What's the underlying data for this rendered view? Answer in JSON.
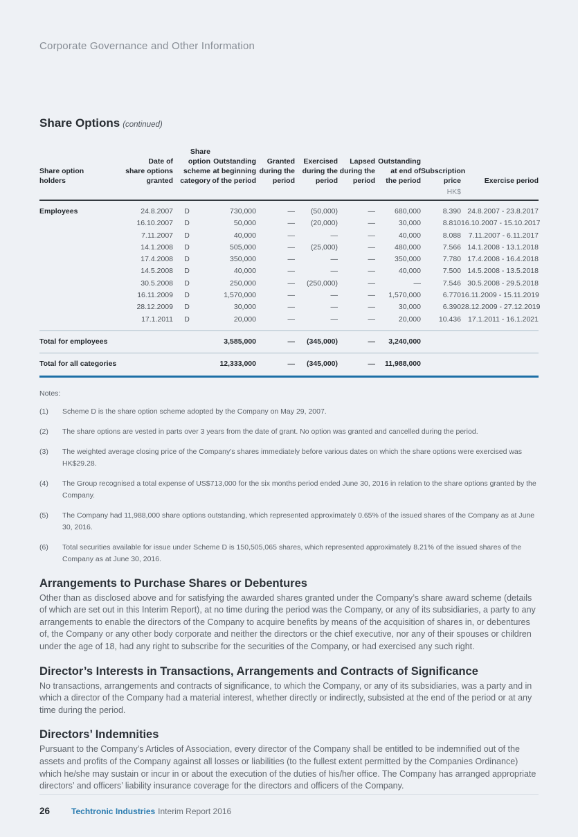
{
  "page": {
    "header": "Corporate Governance and Other Information",
    "footer": {
      "page_number": "26",
      "brand": "Techtronic Industries",
      "report": "Interim Report 2016"
    }
  },
  "share_options": {
    "title": "Share Options",
    "subtitle": "(continued)",
    "table": {
      "headers": {
        "holders": "Share option holders",
        "date_granted": "Date of\nshare options\ngranted",
        "scheme_category": "Share option\nscheme\ncategory",
        "outstanding_beginning": "Outstanding\nat beginning\nof the period",
        "granted": "Granted\nduring the\nperiod",
        "exercised": "Exercised\nduring the\nperiod",
        "lapsed": "Lapsed\nduring the\nperiod",
        "outstanding_end": "Outstanding\nat end of\nthe period",
        "subscription_price": "Subscription\nprice",
        "subscription_price_unit": "HK$",
        "exercise_period": "Exercise period"
      },
      "rows": [
        [
          "Employees",
          "24.8.2007",
          "D",
          "730,000",
          "—",
          "(50,000)",
          "—",
          "680,000",
          "8.390",
          "24.8.2007 - 23.8.2017"
        ],
        [
          "",
          "16.10.2007",
          "D",
          "50,000",
          "—",
          "(20,000)",
          "—",
          "30,000",
          "8.810",
          "16.10.2007 - 15.10.2017"
        ],
        [
          "",
          "7.11.2007",
          "D",
          "40,000",
          "—",
          "—",
          "—",
          "40,000",
          "8.088",
          "7.11.2007 - 6.11.2017"
        ],
        [
          "",
          "14.1.2008",
          "D",
          "505,000",
          "—",
          "(25,000)",
          "—",
          "480,000",
          "7.566",
          "14.1.2008 - 13.1.2018"
        ],
        [
          "",
          "17.4.2008",
          "D",
          "350,000",
          "—",
          "—",
          "—",
          "350,000",
          "7.780",
          "17.4.2008 - 16.4.2018"
        ],
        [
          "",
          "14.5.2008",
          "D",
          "40,000",
          "—",
          "—",
          "—",
          "40,000",
          "7.500",
          "14.5.2008 - 13.5.2018"
        ],
        [
          "",
          "30.5.2008",
          "D",
          "250,000",
          "—",
          "(250,000)",
          "—",
          "—",
          "7.546",
          "30.5.2008 - 29.5.2018"
        ],
        [
          "",
          "16.11.2009",
          "D",
          "1,570,000",
          "—",
          "—",
          "—",
          "1,570,000",
          "6.770",
          "16.11.2009 - 15.11.2019"
        ],
        [
          "",
          "28.12.2009",
          "D",
          "30,000",
          "—",
          "—",
          "—",
          "30,000",
          "6.390",
          "28.12.2009 - 27.12.2019"
        ],
        [
          "",
          "17.1.2011",
          "D",
          "20,000",
          "—",
          "—",
          "—",
          "20,000",
          "10.436",
          "17.1.2011 - 16.1.2021"
        ]
      ],
      "totals": [
        {
          "label": "Total for employees",
          "beginning": "3,585,000",
          "granted": "—",
          "exercised": "(345,000)",
          "lapsed": "—",
          "end": "3,240,000"
        },
        {
          "label": "Total for all categories",
          "beginning": "12,333,000",
          "granted": "—",
          "exercised": "(345,000)",
          "lapsed": "—",
          "end": "11,988,000"
        }
      ]
    },
    "notes_label": "Notes:",
    "notes": [
      {
        "num": "(1)",
        "text": "Scheme D is the share option scheme adopted by the Company on May 29, 2007."
      },
      {
        "num": "(2)",
        "text": "The share options are vested in parts over 3 years from the date of grant. No option was granted and cancelled during the period."
      },
      {
        "num": "(3)",
        "text": "The weighted average closing price of the Company’s shares immediately before various dates on which the share options were exercised was HK$29.28."
      },
      {
        "num": "(4)",
        "text": "The Group recognised a total expense of US$713,000 for the six months period ended June 30, 2016 in relation to the share options granted by the Company."
      },
      {
        "num": "(5)",
        "text": "The Company had 11,988,000 share options outstanding, which represented approximately 0.65% of the issued shares of the Company as at June 30, 2016."
      },
      {
        "num": "(6)",
        "text": "Total securities available for issue under Scheme D is 150,505,065 shares, which represented approximately 8.21% of the issued shares of the Company as at June 30, 2016."
      }
    ]
  },
  "sections": [
    {
      "title": "Arrangements to Purchase Shares or Debentures",
      "body": "Other than as disclosed above and for satisfying the awarded shares granted under the Company’s share award scheme (details of which are set out in this Interim Report), at no time during the period was the Company, or any of its subsidiaries, a party to any arrangements to enable the directors of the Company to acquire benefits by means of the acquisition of shares in, or debentures of, the Company or any other body corporate and neither the directors or the chief executive, nor any of their spouses or children under the age of 18, had any right to subscribe for the securities of the Company, or had exercised any such right."
    },
    {
      "title": "Director’s Interests in Transactions, Arrangements and Contracts of Significance",
      "body": "No transactions, arrangements and contracts of significance, to which the Company, or any of its subsidiaries, was a party and in which a director of the Company had a material interest, whether directly or indirectly, subsisted at the end of the period or at any time during the period."
    },
    {
      "title": "Directors’ Indemnities",
      "body": "Pursuant to the Company’s Articles of Association, every director of the Company shall be entitled to be indemnified out of the assets and profits of the Company against all losses or liabilities (to the fullest extent permitted by the Companies Ordinance) which he/she may sustain or incur in or about the execution of the duties of his/her office. The Company has arranged appropriate directors’ and officers’ liability insurance coverage for the directors and officers of the Company."
    }
  ]
}
